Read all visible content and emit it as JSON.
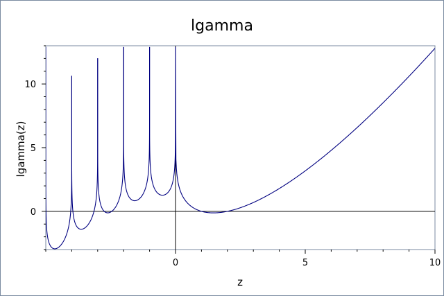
{
  "chart_data": {
    "type": "line",
    "title": "lgamma",
    "xlabel": "z",
    "ylabel": "lgamma(z)",
    "xlim": [
      -5,
      10
    ],
    "ylim": [
      -3,
      13
    ],
    "x_ticks": [
      0,
      5,
      10
    ],
    "x_tick_labels": [
      "0",
      "5",
      "10"
    ],
    "y_ticks": [
      0,
      5,
      10
    ],
    "y_tick_labels": [
      "0",
      "5",
      "10"
    ],
    "grid": false,
    "colors": {
      "line": "#000080",
      "axes": "#000000",
      "frame": "#7a8aa0"
    },
    "series": [
      {
        "x": [
          -4.99,
          -4.9,
          -4.8,
          -4.6,
          -4.5,
          -4.4,
          -4.2,
          -4.1,
          -4.02,
          -3.99,
          -3.9,
          -3.8,
          -3.6,
          -3.5,
          -3.4,
          -3.2,
          -3.1,
          -3.02,
          -2.99,
          -2.9,
          -2.8,
          -2.6,
          -2.5,
          -2.4,
          -2.2,
          -2.1,
          -2.02,
          -1.99,
          -1.9,
          -1.8,
          -1.6,
          -1.5,
          -1.4,
          -1.2,
          -1.1,
          -1.02,
          -0.99,
          -0.9,
          -0.8,
          -0.6,
          -0.5,
          -0.4,
          -0.2,
          -0.1,
          -0.02,
          0.02,
          0.1,
          0.2,
          0.5,
          1.0,
          1.46,
          2.0,
          3.0,
          4.0,
          5.0,
          6.0,
          7.0,
          8.0,
          9.0,
          10.0
        ],
        "y": [
          -0.33,
          -2.35,
          -2.81,
          -2.74,
          -2.81,
          -2.68,
          -1.14,
          -0.05,
          1.43,
          -0.11,
          -1.34,
          -1.46,
          -1.39,
          -1.31,
          -0.9,
          0.37,
          1.77,
          3.04,
          1.36,
          0.0,
          -0.11,
          0.06,
          -0.06,
          0.03,
          1.31,
          2.55,
          3.97,
          3.33,
          2.2,
          1.95,
          1.84,
          0.86,
          1.36,
          1.73,
          2.93,
          4.33,
          4.61,
          2.29,
          1.74,
          1.27,
          1.26,
          1.16,
          1.71,
          2.37,
          3.92,
          3.9,
          2.25,
          1.52,
          0.57,
          0.0,
          -0.12,
          0.0,
          0.69,
          1.79,
          3.18,
          4.79,
          6.58,
          8.53,
          10.6,
          12.8
        ]
      }
    ]
  }
}
